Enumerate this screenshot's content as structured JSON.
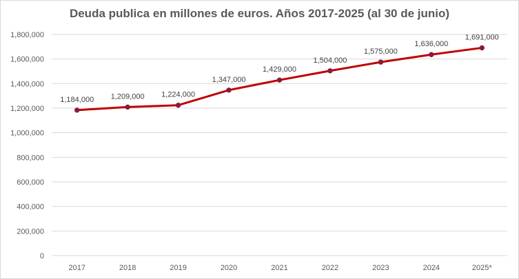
{
  "chart_data": {
    "type": "line",
    "title": "Deuda publica en millones de euros.  Años 2017-2025 (al 30 de junio)",
    "xlabel": "",
    "ylabel": "",
    "categories": [
      "2017",
      "2018",
      "2019",
      "2020",
      "2021",
      "2022",
      "2023",
      "2024",
      "2025*"
    ],
    "series": [
      {
        "values": [
          1184000,
          1209000,
          1224000,
          1347000,
          1429000,
          1504000,
          1575000,
          1636000,
          1691000
        ],
        "labels": [
          "1,184,000",
          "1,209,000",
          "1,224,000",
          "1,347,000",
          "1,429,000",
          "1,504,000",
          "1,575,000",
          "1,636,000",
          "1,691,000"
        ],
        "color": "#c00000",
        "marker_color": "#8b1a3a"
      }
    ],
    "ylim": [
      0,
      1800000
    ],
    "yticks": [
      0,
      200000,
      400000,
      600000,
      800000,
      1000000,
      1200000,
      1400000,
      1600000,
      1800000
    ],
    "ytick_labels": [
      "0",
      "200,000",
      "400,000",
      "600,000",
      "800,000",
      "1,000,000",
      "1,200,000",
      "1,400,000",
      "1,600,000",
      "1,800,000"
    ],
    "grid": true,
    "gridline_color": "#d9d9d9",
    "legend": "none"
  }
}
